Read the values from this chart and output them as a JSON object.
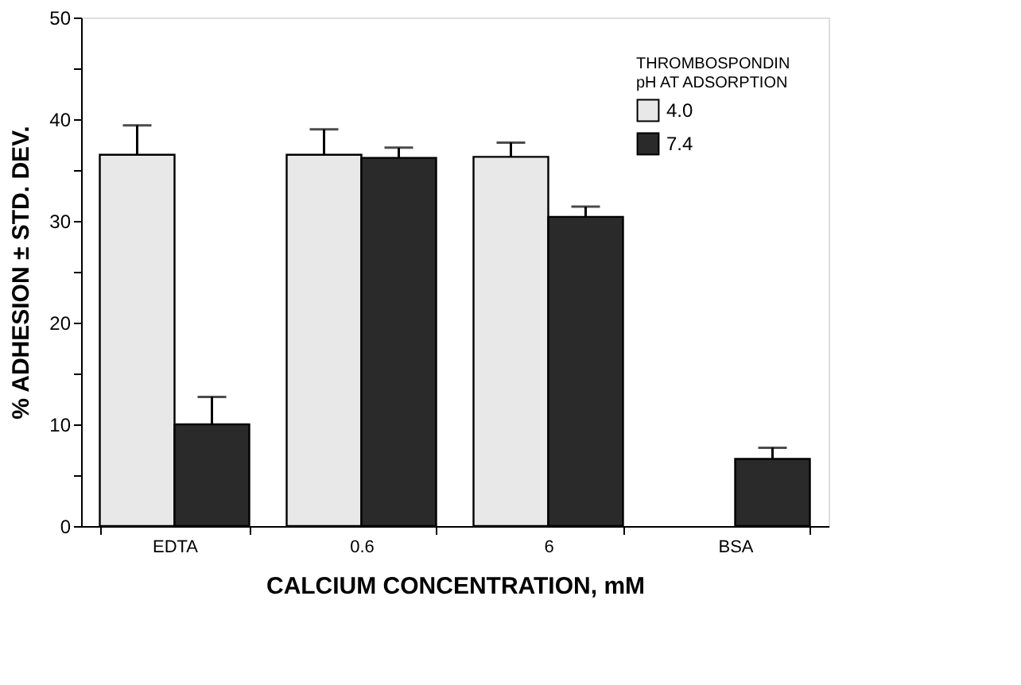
{
  "chart_data": {
    "type": "bar",
    "xlabel": "CALCIUM CONCENTRATION, mM",
    "ylabel": "% ADHESION ± STD. DEV.",
    "legend_title": "THROMBOSPONDIN pH AT ADSORPTION",
    "categories": [
      "EDTA",
      "0.6",
      "6",
      "BSA"
    ],
    "series": [
      {
        "name": "4.0",
        "color": "#e8e8e8",
        "values": [
          36.5,
          36.5,
          36.3,
          null
        ],
        "errors": [
          [
            36.5,
            39.4
          ],
          [
            36.5,
            39
          ],
          [
            36.3,
            37.7
          ],
          null
        ]
      },
      {
        "name": "7.4",
        "color": "#2a2a2a",
        "values": [
          10,
          36.2,
          30.4,
          6.6
        ],
        "errors": [
          [
            10,
            12.7
          ],
          [
            36.2,
            37.2
          ],
          [
            30.4,
            31.4
          ],
          [
            6.6,
            7.7
          ]
        ]
      }
    ],
    "ylim": [
      0,
      50
    ],
    "yticks": [
      0,
      {
        "value": 5,
        "label": null
      },
      10,
      {
        "value": 15,
        "label": null
      },
      20,
      {
        "value": 25,
        "label": null
      },
      30,
      {
        "value": 35,
        "label": null
      },
      40,
      {
        "value": 45,
        "label": null
      },
      50
    ],
    "grid": false,
    "legend": "top right"
  }
}
